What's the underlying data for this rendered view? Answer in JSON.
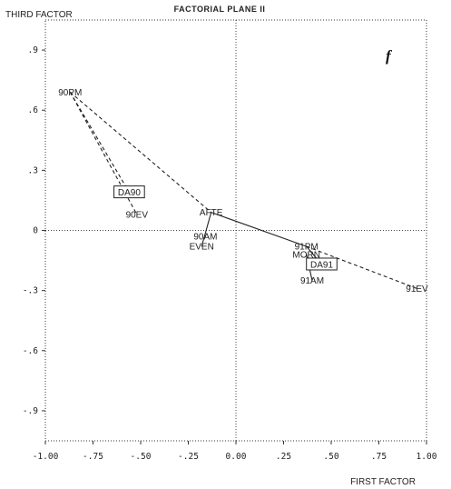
{
  "chart_data": {
    "type": "scatter",
    "title": "FACTORIAL PLANE II",
    "panel_label": "f",
    "xlabel": "FIRST FACTOR",
    "ylabel": "THIRD FACTOR",
    "xlim": [
      -1.0,
      1.0
    ],
    "ylim": [
      -1.05,
      1.05
    ],
    "xticks": [
      -1.0,
      -0.75,
      -0.5,
      -0.25,
      0.0,
      0.25,
      0.5,
      0.75,
      1.0
    ],
    "xtick_labels": [
      "-1.00",
      "-.75",
      "-.50",
      "-.25",
      "0.00",
      ".25",
      ".50",
      ".75",
      "1.00"
    ],
    "yticks": [
      0.9,
      0.6,
      0.3,
      0.0,
      -0.3,
      -0.6,
      -0.9
    ],
    "ytick_labels": [
      ".9",
      ".6",
      ".3",
      "0",
      "-.3",
      "-.6",
      "-.9"
    ],
    "grid": "dotted zero lines",
    "points": [
      {
        "label": "90PM",
        "x": -0.87,
        "y": 0.69,
        "boxed": false
      },
      {
        "label": "DA90",
        "x": -0.56,
        "y": 0.19,
        "boxed": true
      },
      {
        "label": "90EV",
        "x": -0.52,
        "y": 0.08,
        "boxed": false
      },
      {
        "label": "AFTE",
        "x": -0.13,
        "y": 0.09,
        "boxed": false
      },
      {
        "label": "90AM",
        "x": -0.16,
        "y": -0.03,
        "boxed": false
      },
      {
        "label": "EVEN",
        "x": -0.18,
        "y": -0.08,
        "boxed": false
      },
      {
        "label": "91PM",
        "x": 0.37,
        "y": -0.08,
        "boxed": false
      },
      {
        "label": "MORN",
        "x": 0.37,
        "y": -0.12,
        "boxed": false
      },
      {
        "label": "DA91",
        "x": 0.45,
        "y": -0.17,
        "boxed": true
      },
      {
        "label": "91AM",
        "x": 0.4,
        "y": -0.25,
        "boxed": false
      },
      {
        "label": "91EV",
        "x": 0.95,
        "y": -0.29,
        "boxed": false
      }
    ],
    "trajectories": [
      {
        "from": "90PM",
        "to": "DA90",
        "style": "dashed"
      },
      {
        "from": "90PM",
        "to": "90EV",
        "style": "dashed"
      },
      {
        "from": "90PM",
        "to": "AFTE",
        "style": "dashed"
      },
      {
        "from": "AFTE",
        "to": "91PM",
        "style": "solid"
      },
      {
        "from": "AFTE",
        "to": "EVEN",
        "style": "solid"
      },
      {
        "from": "91PM",
        "to": "91EV",
        "style": "dashed"
      },
      {
        "from": "91PM",
        "to": "DA91",
        "style": "solid"
      },
      {
        "from": "MORN",
        "to": "91AM",
        "style": "solid"
      }
    ]
  }
}
